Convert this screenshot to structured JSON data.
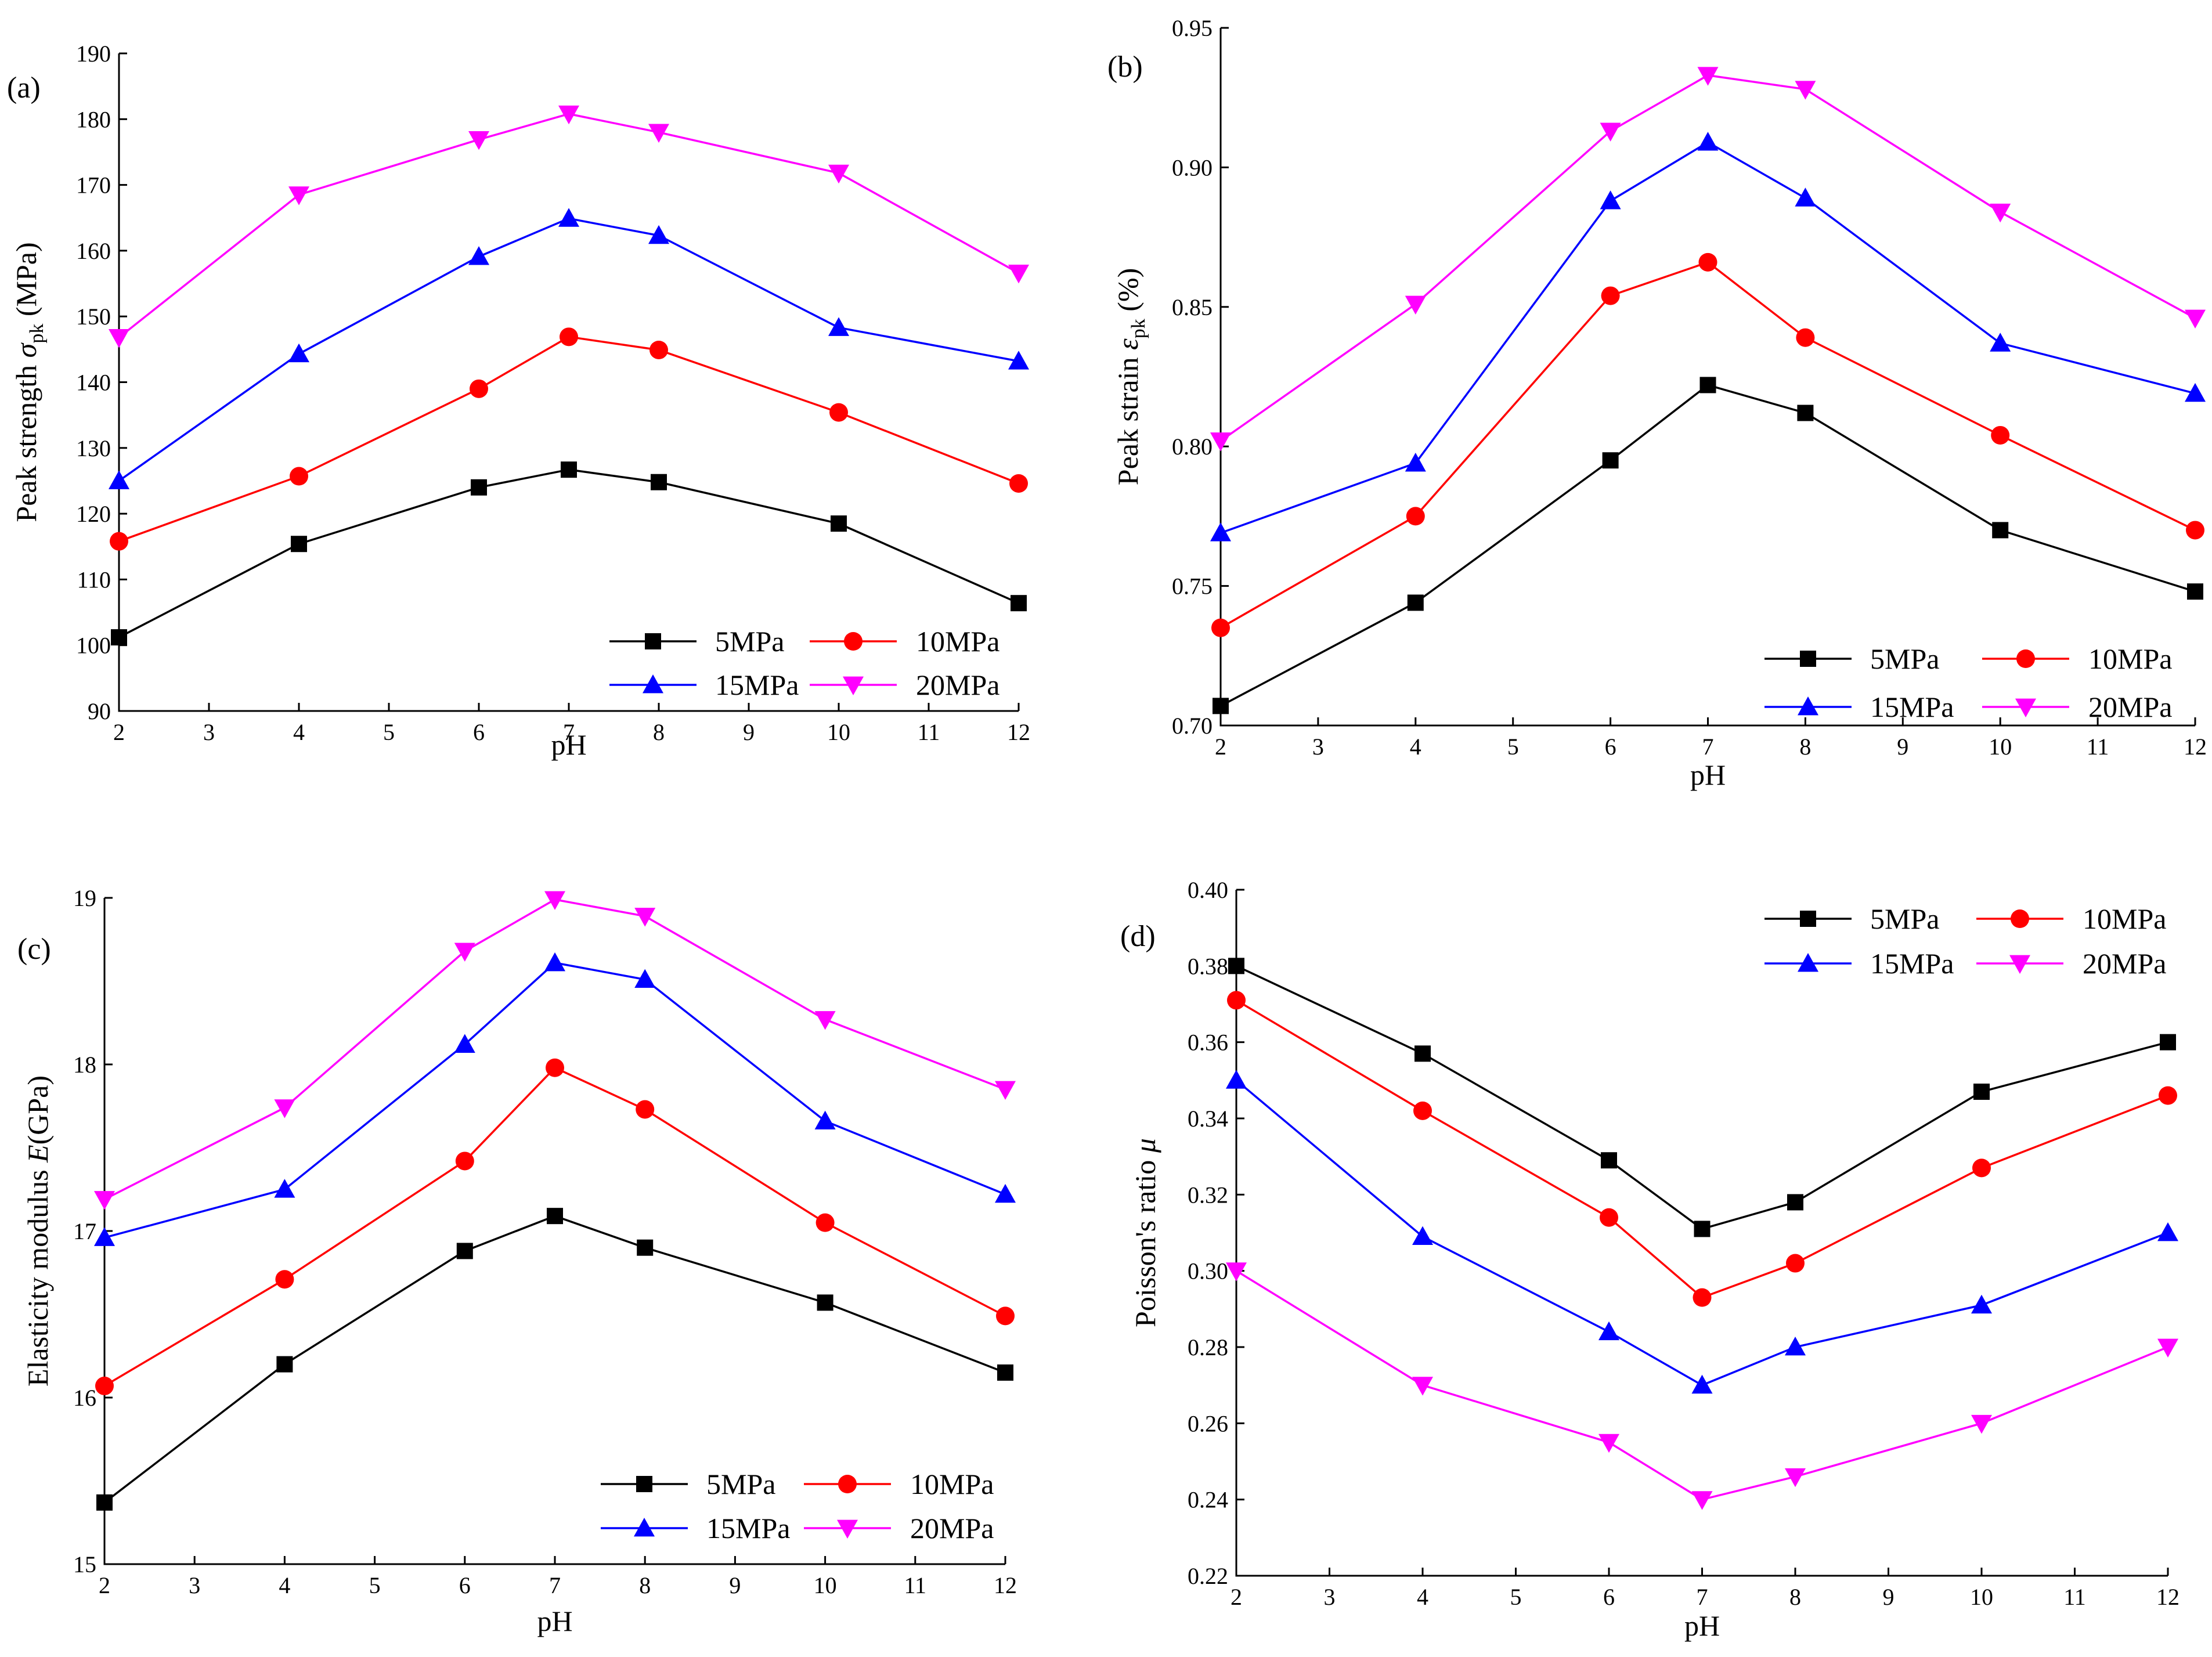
{
  "chart_data": [
    {
      "type": "line",
      "panel_label": "(a)",
      "xlabel": "pH",
      "ylabel_main": "Peak strength ",
      "ylabel_symbol": "σ",
      "ylabel_sub": "pk",
      "ylabel_unit": " (MPa)",
      "x": [
        2,
        4,
        6,
        7,
        8,
        10,
        12
      ],
      "xlim": [
        2,
        12
      ],
      "ylim": [
        90,
        190
      ],
      "xticks": [
        "2",
        "3",
        "4",
        "5",
        "6",
        "7",
        "8",
        "9",
        "10",
        "11",
        "12"
      ],
      "yticks": [
        "90",
        "100",
        "110",
        "120",
        "130",
        "140",
        "150",
        "160",
        "170",
        "180",
        "190"
      ],
      "legend_position": "bottom-right",
      "series": [
        {
          "name": "5MPa",
          "values": [
            101.2,
            115.4,
            124.0,
            126.7,
            124.8,
            118.5,
            106.4
          ]
        },
        {
          "name": "10MPa",
          "values": [
            115.8,
            125.7,
            139.0,
            146.9,
            144.9,
            135.4,
            124.6
          ]
        },
        {
          "name": "15MPa",
          "values": [
            125.0,
            144.3,
            159.1,
            164.9,
            162.3,
            148.3,
            143.2
          ]
        },
        {
          "name": "20MPa",
          "values": [
            146.8,
            168.5,
            176.9,
            180.8,
            178.0,
            171.8,
            156.6
          ]
        }
      ]
    },
    {
      "type": "line",
      "panel_label": "(b)",
      "xlabel": "pH",
      "ylabel_main": "Peak strain ",
      "ylabel_symbol": "ε",
      "ylabel_sub": "pk",
      "ylabel_unit": " (%)",
      "x": [
        2,
        4,
        6,
        7,
        8,
        10,
        12
      ],
      "xlim": [
        2,
        12
      ],
      "ylim": [
        0.7,
        0.95
      ],
      "xticks": [
        "2",
        "3",
        "4",
        "5",
        "6",
        "7",
        "8",
        "9",
        "10",
        "11",
        "12"
      ],
      "yticks": [
        "0.70",
        "0.75",
        "0.80",
        "0.85",
        "0.90",
        "0.95"
      ],
      "legend_position": "bottom-right",
      "series": [
        {
          "name": "5MPa",
          "values": [
            0.707,
            0.744,
            0.795,
            0.822,
            0.812,
            0.77,
            0.748
          ]
        },
        {
          "name": "10MPa",
          "values": [
            0.735,
            0.775,
            0.854,
            0.866,
            0.839,
            0.804,
            0.77
          ]
        },
        {
          "name": "15MPa",
          "values": [
            0.769,
            0.794,
            0.888,
            0.909,
            0.889,
            0.837,
            0.819
          ]
        },
        {
          "name": "20MPa",
          "values": [
            0.802,
            0.851,
            0.913,
            0.933,
            0.928,
            0.884,
            0.846
          ]
        }
      ]
    },
    {
      "type": "line",
      "panel_label": "(c)",
      "xlabel": "pH",
      "ylabel_main": "Elasticity modulus ",
      "ylabel_symbol": "E",
      "ylabel_sub": "",
      "ylabel_unit": "(GPa)",
      "x": [
        2,
        4,
        6,
        7,
        8,
        10,
        12
      ],
      "xlim": [
        2,
        12
      ],
      "ylim": [
        15,
        19
      ],
      "xticks": [
        "2",
        "3",
        "4",
        "5",
        "6",
        "7",
        "8",
        "9",
        "10",
        "11",
        "12"
      ],
      "yticks": [
        "15",
        "16",
        "17",
        "18",
        "19"
      ],
      "legend_position": "bottom-right",
      "series": [
        {
          "name": "5MPa",
          "values": [
            15.37,
            16.2,
            16.88,
            17.09,
            16.9,
            16.57,
            16.15
          ]
        },
        {
          "name": "10MPa",
          "values": [
            16.07,
            16.71,
            17.42,
            17.98,
            17.73,
            17.05,
            16.49
          ]
        },
        {
          "name": "15MPa",
          "values": [
            16.96,
            17.25,
            18.12,
            18.61,
            18.51,
            17.66,
            17.22
          ]
        },
        {
          "name": "20MPa",
          "values": [
            17.19,
            17.74,
            18.68,
            18.99,
            18.89,
            18.27,
            17.85
          ]
        }
      ]
    },
    {
      "type": "line",
      "panel_label": "(d)",
      "xlabel": "pH",
      "ylabel_main": "Poisson's ratio  ",
      "ylabel_symbol": "μ",
      "ylabel_sub": "",
      "ylabel_unit": "",
      "x": [
        2,
        4,
        6,
        7,
        8,
        10,
        12
      ],
      "xlim": [
        2,
        12
      ],
      "ylim": [
        0.22,
        0.4
      ],
      "xticks": [
        "2",
        "3",
        "4",
        "5",
        "6",
        "7",
        "8",
        "9",
        "10",
        "11",
        "12"
      ],
      "yticks": [
        "0.22",
        "0.24",
        "0.26",
        "0.28",
        "0.30",
        "0.32",
        "0.34",
        "0.36",
        "0.38",
        "0.40"
      ],
      "legend_position": "top-right",
      "series": [
        {
          "name": "5MPa",
          "values": [
            0.38,
            0.357,
            0.329,
            0.311,
            0.318,
            0.347,
            0.36
          ]
        },
        {
          "name": "10MPa",
          "values": [
            0.371,
            0.342,
            0.314,
            0.293,
            0.302,
            0.327,
            0.346
          ]
        },
        {
          "name": "15MPa",
          "values": [
            0.35,
            0.309,
            0.284,
            0.27,
            0.28,
            0.291,
            0.31
          ]
        },
        {
          "name": "20MPa",
          "values": [
            0.3,
            0.27,
            0.255,
            0.24,
            0.246,
            0.26,
            0.28
          ]
        }
      ]
    }
  ],
  "series_styles": [
    {
      "name": "5MPa",
      "color": "#000000",
      "marker": "square"
    },
    {
      "name": "10MPa",
      "color": "#ff0000",
      "marker": "circle"
    },
    {
      "name": "15MPa",
      "color": "#0000ff",
      "marker": "triangle-up"
    },
    {
      "name": "20MPa",
      "color": "#ff00ff",
      "marker": "triangle-down"
    }
  ]
}
